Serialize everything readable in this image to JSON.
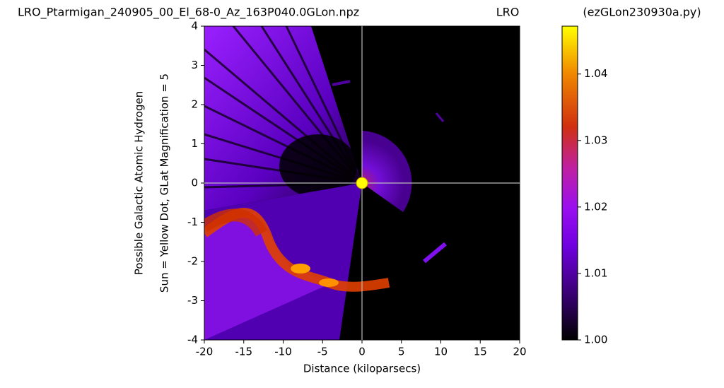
{
  "chart_data": {
    "type": "heatmap",
    "title": "LRO_Ptarmigan_240905_00_El_68-0_Az_163P040.0GLon.npz",
    "subtitle": "LRO",
    "annotation": "(ezGLon230930a.py)",
    "x_label": "Distance (kiloparsecs)",
    "y_label": [
      "Possible Galactic Atomic Hydrogen",
      "Sun = Yellow Dot, GLat Magnification = 5"
    ],
    "xlim": [
      -20,
      20
    ],
    "xticks": [
      -20,
      -15,
      -10,
      -5,
      0,
      5,
      10,
      15,
      20
    ],
    "ylim": [
      -4,
      4
    ],
    "yticks": [
      -4,
      -3,
      -2,
      -1,
      0,
      1,
      2,
      3,
      4
    ],
    "clim": [
      1.0,
      1.0472
    ],
    "cticks": [
      {
        "value": 1.0,
        "label": "1.00"
      },
      1.01,
      1.02,
      1.03,
      1.04
    ],
    "sun": {
      "x": 0,
      "y": 0,
      "color": "#ffff00"
    },
    "grid": false
  }
}
